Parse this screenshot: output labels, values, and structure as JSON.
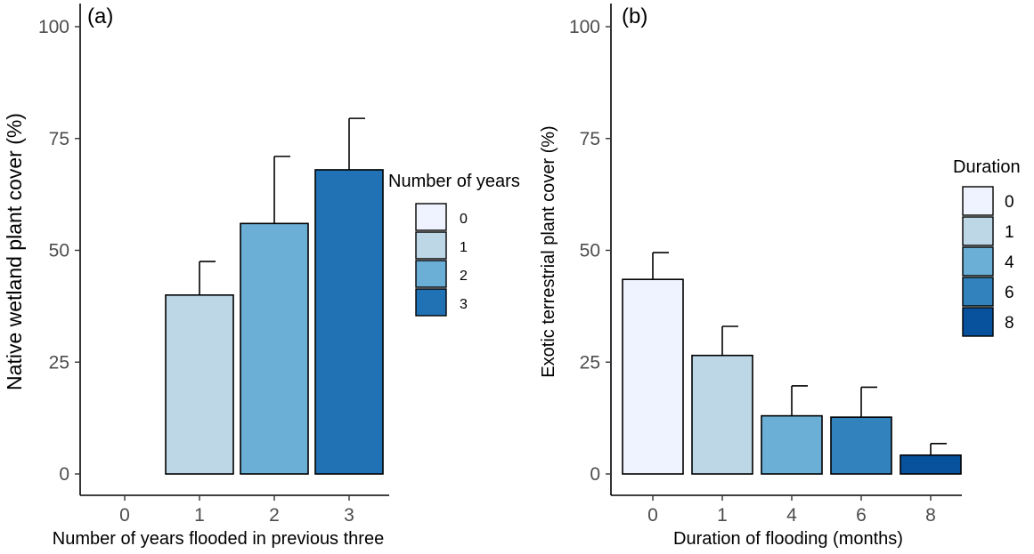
{
  "chart_data": [
    {
      "panel_label": "(a)",
      "type": "bar",
      "categories": [
        "0",
        "1",
        "2",
        "3"
      ],
      "values": [
        0,
        40,
        56,
        68
      ],
      "error_upper": [
        null,
        47.5,
        71,
        79.5
      ],
      "colors": [
        "#eff3ff",
        "#bdd7e7",
        "#6baed6",
        "#2171b5"
      ],
      "xlabel": "Number of years flooded in previous three",
      "ylabel": "Native wetland plant cover (%)",
      "ylim": [
        0,
        100
      ],
      "yticks": [
        "0",
        "25",
        "50",
        "75",
        "100"
      ],
      "legend": {
        "title": "Number of years",
        "entries": [
          "0",
          "1",
          "2",
          "3"
        ],
        "colors": [
          "#eff3ff",
          "#bdd7e7",
          "#6baed6",
          "#2171b5"
        ]
      },
      "grid": false
    },
    {
      "panel_label": "(b)",
      "type": "bar",
      "categories": [
        "0",
        "1",
        "4",
        "6",
        "8"
      ],
      "values": [
        43.5,
        26.5,
        13,
        12.7,
        4.2
      ],
      "error_upper": [
        49.5,
        33,
        19.7,
        19.4,
        6.8
      ],
      "colors": [
        "#eff3ff",
        "#bdd7e7",
        "#6baed6",
        "#3182bd",
        "#08519c"
      ],
      "xlabel": "Duration of flooding (months)",
      "ylabel": "Exotic terrestrial plant cover (%)",
      "ylim": [
        0,
        100
      ],
      "yticks": [
        "0",
        "25",
        "50",
        "75",
        "100"
      ],
      "legend": {
        "title": "Duration",
        "entries": [
          "0",
          "1",
          "4",
          "6",
          "8"
        ],
        "colors": [
          "#eff3ff",
          "#bdd7e7",
          "#6baed6",
          "#3182bd",
          "#08519c"
        ]
      },
      "grid": false
    }
  ]
}
